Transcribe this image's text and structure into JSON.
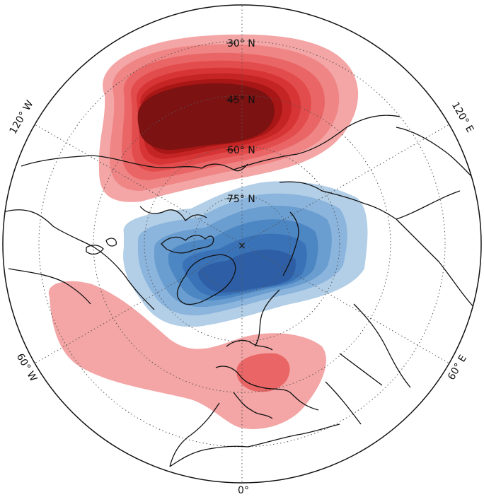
{
  "map": {
    "projection": "north-polar-stereographic",
    "center_marker": "×",
    "lat_labels": [
      "30° N",
      "45° N",
      "60° N",
      "75° N"
    ],
    "lon_labels": {
      "bottom": "0°",
      "right_upper": "120° E",
      "right_lower": "60° E",
      "left_upper": "120° W",
      "left_lower": "60° W"
    },
    "anomaly_colors": {
      "positive": [
        "#f4a5a5",
        "#ef8585",
        "#ea6666",
        "#e34c4c",
        "#d73535",
        "#c42424",
        "#a81616",
        "#7d1212"
      ],
      "negative": [
        "#b3cfe7",
        "#8bb5dd",
        "#6a9dd0",
        "#4c86c3",
        "#3a72b8",
        "#2e5fa6"
      ]
    },
    "anomaly_features": [
      {
        "name": "positive-anomaly-north-pacific",
        "sign": "positive",
        "levels": 8
      },
      {
        "name": "negative-anomaly-arctic-greenland",
        "sign": "negative",
        "levels": 6
      },
      {
        "name": "positive-anomaly-atlantic-europe",
        "sign": "positive",
        "levels": 2
      }
    ]
  }
}
